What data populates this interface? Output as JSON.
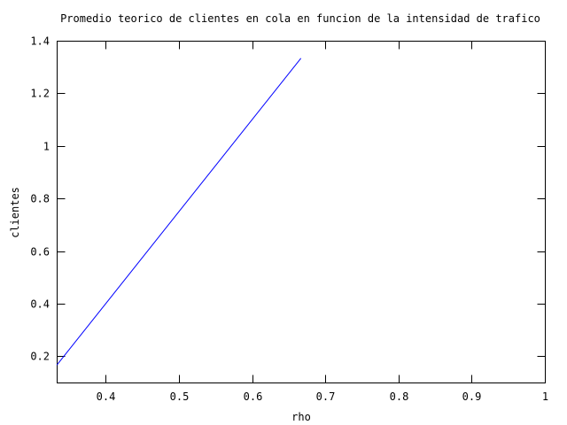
{
  "chart_data": {
    "type": "line",
    "title": "Promedio teorico de clientes en cola en funcion de la intensidad de trafico",
    "xlabel": "rho",
    "ylabel": "clientes",
    "xlim": [
      0.333,
      1.0
    ],
    "ylim": [
      0.1,
      1.4
    ],
    "x_ticks": [
      0.4,
      0.5,
      0.6,
      0.7,
      0.8,
      0.9,
      1
    ],
    "y_ticks": [
      0.2,
      0.4,
      0.6,
      0.8,
      1,
      1.2,
      1.4
    ],
    "x_tick_labels": [
      "0.4",
      "0.5",
      "0.6",
      "0.7",
      "0.8",
      "0.9",
      "1"
    ],
    "y_tick_labels": [
      "0.2",
      "0.4",
      "0.6",
      "0.8",
      "1",
      "1.2",
      "1.4"
    ],
    "grid": false,
    "legend": "none",
    "line_color": "#0000ff",
    "series": [
      {
        "x": [
          0.3333,
          0.6667
        ],
        "y": [
          0.1667,
          1.3333
        ]
      }
    ]
  }
}
